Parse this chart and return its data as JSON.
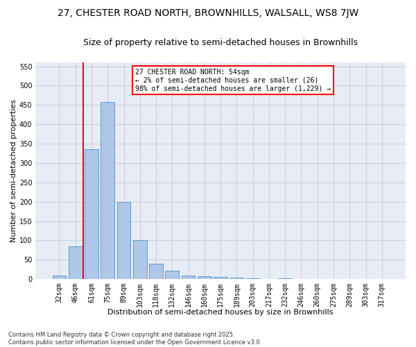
{
  "title_line1": "27, CHESTER ROAD NORTH, BROWNHILLS, WALSALL, WS8 7JW",
  "title_line2": "Size of property relative to semi-detached houses in Brownhills",
  "xlabel": "Distribution of semi-detached houses by size in Brownhills",
  "ylabel": "Number of semi-detached properties",
  "categories": [
    "32sqm",
    "46sqm",
    "61sqm",
    "75sqm",
    "89sqm",
    "103sqm",
    "118sqm",
    "132sqm",
    "146sqm",
    "160sqm",
    "175sqm",
    "189sqm",
    "203sqm",
    "217sqm",
    "232sqm",
    "246sqm",
    "260sqm",
    "275sqm",
    "289sqm",
    "303sqm",
    "317sqm"
  ],
  "values": [
    10,
    84,
    335,
    457,
    200,
    101,
    40,
    21,
    10,
    8,
    5,
    3,
    2,
    0,
    2,
    0,
    0,
    0,
    0,
    0,
    0
  ],
  "bar_color": "#aec6e8",
  "bar_edge_color": "#5b9bd5",
  "vline_x": 1.5,
  "vline_color": "red",
  "annotation_text": "27 CHESTER ROAD NORTH: 54sqm\n← 2% of semi-detached houses are smaller (26)\n98% of semi-detached houses are larger (1,229) →",
  "annotation_box_color": "red",
  "ylim": [
    0,
    560
  ],
  "yticks": [
    0,
    50,
    100,
    150,
    200,
    250,
    300,
    350,
    400,
    450,
    500,
    550
  ],
  "grid_color": "#c8d0e0",
  "background_color": "#e8edf5",
  "footer_text": "Contains HM Land Registry data © Crown copyright and database right 2025.\nContains public sector information licensed under the Open Government Licence v3.0.",
  "title_fontsize": 10,
  "subtitle_fontsize": 9,
  "tick_fontsize": 7,
  "xlabel_fontsize": 8,
  "ylabel_fontsize": 8,
  "annotation_fontsize": 7,
  "footer_fontsize": 6
}
